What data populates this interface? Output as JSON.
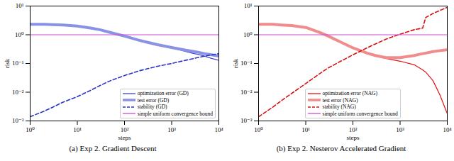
{
  "chart_data": [
    {
      "type": "line",
      "title": "(a) Exp 2. Gradient Descent",
      "x_label": "steps",
      "y_label": "risk",
      "log": true,
      "grid": false,
      "legend": "lower right",
      "xlim": [
        1,
        10000
      ],
      "xticks": [
        {
          "value": 1,
          "label": "10⁰"
        },
        {
          "value": 10,
          "label": "10¹"
        },
        {
          "value": 100,
          "label": "10²"
        },
        {
          "value": 1000,
          "label": "10³"
        },
        {
          "value": 10000,
          "label": "10⁴"
        }
      ],
      "ylim": [
        0.001,
        10
      ],
      "yticks": [
        {
          "value": 0.001,
          "label": "10⁻³"
        },
        {
          "value": 0.01,
          "label": "10⁻²"
        },
        {
          "value": 0.1,
          "label": "10⁻¹"
        },
        {
          "value": 1,
          "label": "10⁰"
        },
        {
          "value": 10,
          "label": "10¹"
        }
      ],
      "x": [
        1,
        2,
        3,
        5,
        10,
        20,
        30,
        50,
        100,
        200,
        300,
        500,
        1000,
        2000,
        3000,
        3500,
        5000,
        7000,
        10000
      ],
      "series": [
        {
          "name": "optimization error (GD)",
          "color": "#3b46d0",
          "line_style": "solid",
          "values": [
            2.3,
            2.3,
            2.25,
            2.2,
            2.0,
            1.7,
            1.5,
            1.2,
            0.9,
            0.65,
            0.55,
            0.45,
            0.35,
            0.26,
            0.22,
            0.21,
            0.18,
            0.15,
            0.13
          ]
        },
        {
          "name": "test error (GD)",
          "color": "#8a92e6",
          "line_style": "solid",
          "values": [
            2.3,
            2.3,
            2.25,
            2.2,
            2.0,
            1.7,
            1.5,
            1.2,
            0.9,
            0.65,
            0.55,
            0.45,
            0.36,
            0.29,
            0.26,
            0.25,
            0.22,
            0.2,
            0.18
          ]
        },
        {
          "name": "stability (GD)",
          "color": "#2a35c8",
          "line_style": "dashed",
          "values": [
            0.0014,
            0.0022,
            0.003,
            0.0045,
            0.007,
            0.012,
            0.017,
            0.025,
            0.038,
            0.055,
            0.065,
            0.08,
            0.1,
            0.13,
            0.15,
            0.16,
            0.18,
            0.2,
            0.22
          ]
        },
        {
          "name": "simple uniform convergence bound",
          "color": "#d24ad8",
          "line_style": "solid",
          "values": [
            1,
            1,
            1,
            1,
            1,
            1,
            1,
            1,
            1,
            1,
            1,
            1,
            1,
            1,
            1,
            1,
            1,
            1,
            1
          ]
        }
      ]
    },
    {
      "type": "line",
      "title": "(b) Exp 2. Nesterov Accelerated Gradient",
      "x_label": "steps",
      "y_label": "risk",
      "log": true,
      "grid": false,
      "legend": "lower center",
      "xlim": [
        1,
        10000
      ],
      "xticks": [
        {
          "value": 1,
          "label": "10⁰"
        },
        {
          "value": 10,
          "label": "10¹"
        },
        {
          "value": 100,
          "label": "10²"
        },
        {
          "value": 1000,
          "label": "10³"
        },
        {
          "value": 10000,
          "label": "10⁴"
        }
      ],
      "ylim": [
        0.001,
        10
      ],
      "yticks": [
        {
          "value": 0.001,
          "label": "10⁻³"
        },
        {
          "value": 0.01,
          "label": "10⁻²"
        },
        {
          "value": 0.1,
          "label": "10⁻¹"
        },
        {
          "value": 1,
          "label": "10⁰"
        },
        {
          "value": 10,
          "label": "10¹"
        }
      ],
      "x": [
        1,
        2,
        3,
        5,
        10,
        20,
        30,
        50,
        100,
        200,
        300,
        500,
        1000,
        2000,
        3000,
        3500,
        5000,
        7000,
        10000
      ],
      "series": [
        {
          "name": "optimization error (NAG)",
          "color": "#e01515",
          "line_style": "solid",
          "values": [
            2.3,
            2.3,
            2.2,
            2.1,
            1.8,
            1.2,
            0.9,
            0.6,
            0.35,
            0.22,
            0.18,
            0.15,
            0.12,
            0.09,
            0.06,
            0.05,
            0.025,
            0.008,
            0.0018
          ]
        },
        {
          "name": "test error (NAG)",
          "color": "#f08c8c",
          "line_style": "solid",
          "values": [
            2.3,
            2.3,
            2.2,
            2.1,
            1.8,
            1.2,
            0.9,
            0.6,
            0.35,
            0.23,
            0.19,
            0.16,
            0.16,
            0.19,
            0.22,
            0.23,
            0.26,
            0.28,
            0.3
          ]
        },
        {
          "name": "stability (NAG)",
          "color": "#d81010",
          "line_style": "dashed",
          "values": [
            0.0014,
            0.003,
            0.005,
            0.009,
            0.02,
            0.045,
            0.07,
            0.11,
            0.2,
            0.35,
            0.48,
            0.7,
            1.05,
            1.5,
            1.7,
            4.0,
            5.5,
            7.0,
            9.0
          ]
        },
        {
          "name": "simple uniform convergence bound",
          "color": "#d24ad8",
          "line_style": "solid",
          "values": [
            1,
            1,
            1,
            1,
            1,
            1,
            1,
            1,
            1,
            1,
            1,
            1,
            1,
            1,
            1,
            1,
            1,
            1,
            1
          ]
        }
      ]
    }
  ]
}
